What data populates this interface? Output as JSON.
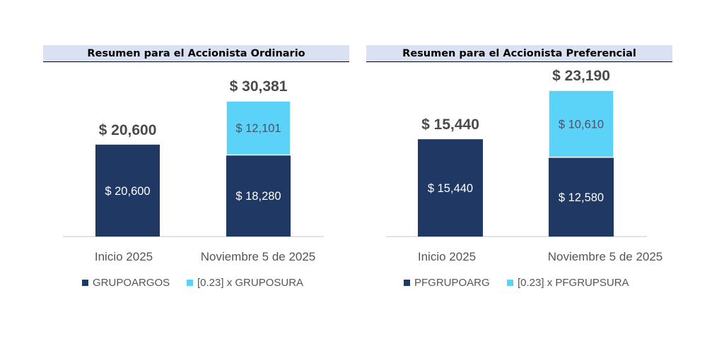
{
  "chart_data": [
    {
      "type": "bar",
      "stacked": true,
      "title": "Resumen para el Accionista Ordinario",
      "categories": [
        "Inicio 2025",
        "Noviembre 5 de 2025"
      ],
      "series": [
        {
          "name": "GRUPOARGOS",
          "color": "#1f3864",
          "values": [
            20600,
            18280
          ],
          "labels": [
            "$ 20,600",
            "$ 18,280"
          ]
        },
        {
          "name": "[0.23] x GRUPOSURA",
          "color": "#5bd3f9",
          "values": [
            0,
            12101
          ],
          "labels": [
            "",
            "$ 12,101"
          ]
        }
      ],
      "totals": [
        20600,
        30381
      ],
      "total_labels": [
        "$ 20,600",
        "$ 30,381"
      ],
      "ylim": [
        0,
        30381
      ],
      "legend": "bottom",
      "grid": false
    },
    {
      "type": "bar",
      "stacked": true,
      "title": "Resumen para el Accionista Preferencial",
      "categories": [
        "Inicio 2025",
        "Noviembre 5 de 2025"
      ],
      "series": [
        {
          "name": "PFGRUPOARG",
          "color": "#1f3864",
          "values": [
            15440,
            12580
          ],
          "labels": [
            "$ 15,440",
            "$ 12,580"
          ]
        },
        {
          "name": "[0.23] x PFGRUPSURA",
          "color": "#5bd3f9",
          "values": [
            0,
            10610
          ],
          "labels": [
            "",
            "$ 10,610"
          ]
        }
      ],
      "totals": [
        15440,
        23190
      ],
      "total_labels": [
        "$ 15,440",
        "$ 23,190"
      ],
      "ylim": [
        0,
        23190
      ],
      "legend": "bottom",
      "grid": false
    }
  ]
}
